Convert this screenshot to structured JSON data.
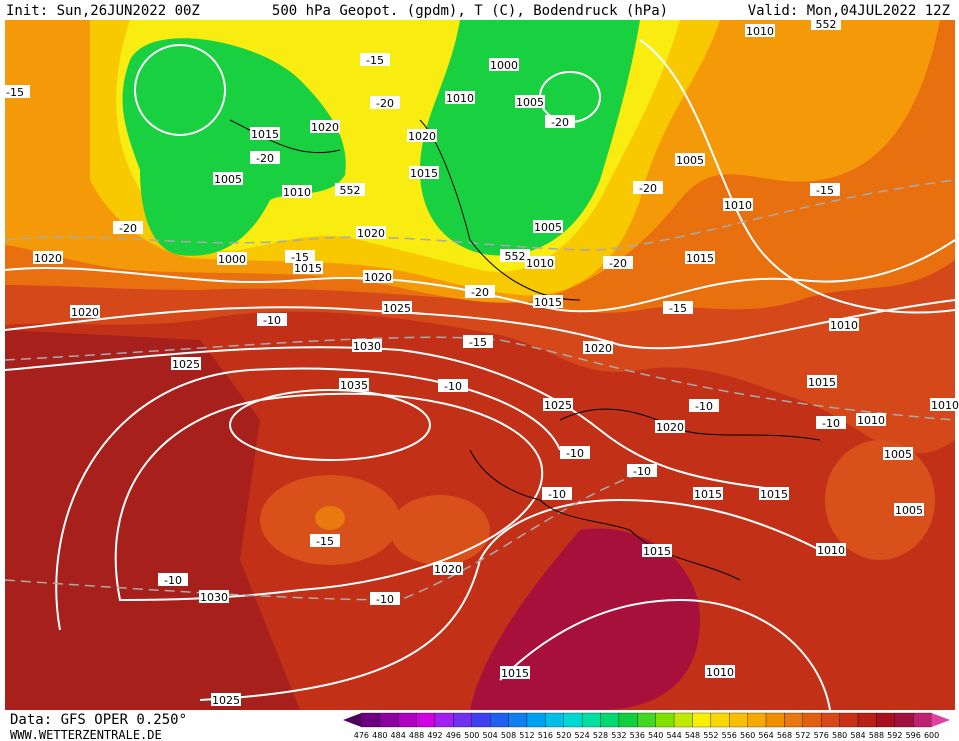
{
  "header": {
    "init": "Init: Sun,26JUN2022 00Z",
    "title": "500 hPa Geopot. (gpdm), T (C), Bodendruck (hPa)",
    "valid": "Valid: Mon,04JUL2022 12Z"
  },
  "map": {
    "labels": [
      "1010",
      "552",
      "-15",
      "1010",
      "1005",
      "-20",
      "1000",
      "-15",
      "-20",
      "1020",
      "1015",
      "-20",
      "1005",
      "1010",
      "552",
      "1020",
      "1015",
      "1005",
      "-20",
      "1010",
      "-15",
      "-20",
      "1020",
      "1000",
      "-15",
      "1015",
      "1020",
      "1005",
      "552",
      "1010",
      "-20",
      "1015",
      "1020",
      "-20",
      "1015",
      "-15",
      "1020",
      "1025",
      "-10",
      "-15",
      "1030",
      "1020",
      "1010",
      "1025",
      "1015",
      "1035",
      "-10",
      "1025",
      "-10",
      "1010",
      "-10",
      "1020",
      "-10",
      "1005",
      "-10",
      "-10",
      "1015",
      "1015",
      "1005",
      "-15",
      "1010",
      "1015",
      "1020",
      "-10",
      "1030",
      "-10",
      "1015",
      "1010",
      "1025",
      "1010"
    ]
  },
  "colorbar": {
    "labels": [
      476,
      480,
      484,
      488,
      492,
      496,
      500,
      504,
      508,
      512,
      516,
      520,
      524,
      528,
      532,
      536,
      540,
      544,
      548,
      552,
      556,
      560,
      564,
      568,
      572,
      576,
      580,
      584,
      588,
      592,
      596,
      600
    ]
  },
  "footer": {
    "data": "Data: GFS OPER 0.250°",
    "site": "WWW.WETTERZENTRALE.DE"
  }
}
